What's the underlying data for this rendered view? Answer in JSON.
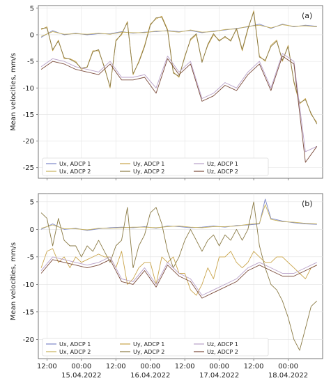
{
  "figure": {
    "ylabel": "Mean velocities, mm/s",
    "xticks": {
      "times": [
        "12:00",
        "00:00",
        "12:00",
        "00:00",
        "12:00",
        "00:00",
        "12:00",
        "00:00"
      ],
      "dates": [
        "15.04.2022",
        "16.04.2022",
        "17.04.2022",
        "18.04.2022"
      ]
    }
  },
  "chart_data": [
    {
      "type": "line",
      "panel_label": "(a)",
      "ylabel": "Mean velocities, mm/s",
      "xlabel": "",
      "x_unit": "hours from 14.04.2022 00:00",
      "xlim": [
        9,
        108
      ],
      "ylim": [
        -27,
        5.5
      ],
      "yticks": [
        5,
        0,
        -5,
        -10,
        -15,
        -20,
        -25
      ],
      "xticks": [
        12,
        24,
        36,
        48,
        60,
        72,
        84,
        96
      ],
      "grid": true,
      "legend": {
        "placement": "lower-left",
        "columns": 3
      },
      "series": [
        {
          "name": "Ux, ADCP 1",
          "color": "#7b86c7",
          "x": [
            10,
            14,
            18,
            22,
            26,
            30,
            34,
            38,
            42,
            46,
            50,
            54,
            58,
            62,
            66,
            70,
            74,
            78,
            82,
            86,
            90,
            94,
            98,
            102,
            106
          ],
          "y": [
            -0.5,
            0.8,
            0,
            0.3,
            0,
            0.2,
            0.2,
            0.6,
            0.3,
            0.5,
            0.6,
            0.8,
            0.6,
            0.8,
            0.4,
            0.7,
            0.9,
            1.2,
            1.5,
            2,
            1.2,
            2,
            1.5,
            1.8,
            1.6
          ]
        },
        {
          "name": "Ux, ADCP 2",
          "color": "#c9b25a",
          "x": [
            10,
            14,
            18,
            22,
            26,
            30,
            34,
            38,
            42,
            46,
            50,
            54,
            58,
            62,
            66,
            70,
            74,
            78,
            82,
            86,
            90,
            94,
            98,
            102,
            106
          ],
          "y": [
            -0.3,
            0.6,
            0.1,
            0.2,
            0.1,
            0.3,
            0.1,
            0.5,
            0.4,
            0.4,
            0.7,
            0.7,
            0.5,
            0.9,
            0.5,
            0.6,
            1,
            1.1,
            1.6,
            1.8,
            1.3,
            1.9,
            1.6,
            1.7,
            1.5
          ]
        },
        {
          "name": "Uy, ADCP 1",
          "color": "#c9a44a",
          "x": [
            10,
            12,
            14,
            16,
            18,
            20,
            22,
            24,
            26,
            28,
            30,
            32,
            34,
            36,
            38,
            40,
            42,
            44,
            46,
            48,
            50,
            52,
            54,
            56,
            58,
            60,
            62,
            64,
            66,
            68,
            70,
            72,
            74,
            76,
            78,
            80,
            82,
            84,
            86,
            88,
            90,
            92,
            94,
            96,
            98,
            100,
            102,
            104,
            106
          ],
          "y": [
            1,
            1.5,
            -3,
            -1,
            -4.5,
            -4.5,
            -5,
            -6.5,
            -6,
            -3,
            -3,
            -6,
            -10,
            -1,
            0,
            2.5,
            -7.5,
            -5,
            -2,
            2,
            3,
            3.5,
            1,
            -7,
            -8,
            -4,
            -1,
            0,
            -5,
            -2,
            0,
            -1,
            -0.5,
            -1,
            1,
            -3,
            1,
            4.5,
            -4,
            -5,
            -2,
            -1,
            -5,
            -2,
            -9,
            -13,
            -12,
            -15,
            -16.5
          ]
        },
        {
          "name": "Uy, ADCP 2",
          "color": "#8a7a44",
          "x": [
            10,
            12,
            14,
            16,
            18,
            20,
            22,
            24,
            26,
            28,
            30,
            32,
            34,
            36,
            38,
            40,
            42,
            44,
            46,
            48,
            50,
            52,
            54,
            56,
            58,
            60,
            62,
            64,
            66,
            68,
            70,
            72,
            74,
            76,
            78,
            80,
            82,
            84,
            86,
            88,
            90,
            92,
            94,
            96,
            98,
            100,
            102,
            104,
            106
          ],
          "y": [
            1.2,
            1.3,
            -2.8,
            -1.2,
            -4.3,
            -4.6,
            -5.2,
            -6.3,
            -6.1,
            -3.2,
            -2.8,
            -6.2,
            -9.8,
            -1.2,
            0.2,
            2.3,
            -7.3,
            -5.2,
            -2.2,
            1.8,
            3.2,
            3.3,
            0.8,
            -7.2,
            -7.8,
            -4.2,
            -0.8,
            0.2,
            -5.2,
            -1.8,
            0.2,
            -1.2,
            -0.3,
            -1.2,
            1.2,
            -2.8,
            1.2,
            4.3,
            -4.2,
            -4.8,
            -2.2,
            -1.2,
            -4.8,
            -2.2,
            -8.8,
            -12.8,
            -12.2,
            -14.8,
            -16.8
          ]
        },
        {
          "name": "Uz, ADCP 1",
          "color": "#b8a0c8",
          "x": [
            10,
            14,
            18,
            22,
            26,
            30,
            34,
            38,
            42,
            46,
            50,
            54,
            58,
            62,
            66,
            70,
            74,
            78,
            82,
            86,
            90,
            94,
            98,
            102,
            106
          ],
          "y": [
            -6,
            -4.5,
            -5,
            -6,
            -6.5,
            -7,
            -5,
            -8,
            -8,
            -7.5,
            -10,
            -4,
            -7,
            -5,
            -12,
            -11,
            -9,
            -10,
            -7,
            -5,
            -10,
            -3.5,
            -5,
            -22,
            -21
          ]
        },
        {
          "name": "Uz, ADCP 2",
          "color": "#7a4a3a",
          "x": [
            10,
            14,
            18,
            22,
            26,
            30,
            34,
            38,
            42,
            46,
            50,
            54,
            58,
            62,
            66,
            70,
            74,
            78,
            82,
            86,
            90,
            94,
            98,
            102,
            106
          ],
          "y": [
            -6.5,
            -5,
            -5.5,
            -6.5,
            -7,
            -7.5,
            -5.5,
            -8.5,
            -8.5,
            -8,
            -11,
            -4.5,
            -7.5,
            -5.5,
            -12.5,
            -11.5,
            -9.5,
            -10.5,
            -7.5,
            -5.5,
            -10.5,
            -4,
            -5.5,
            -24,
            -21
          ]
        }
      ]
    },
    {
      "type": "line",
      "panel_label": "(b)",
      "ylabel": "Mean velocities, mm/s",
      "xlabel": "",
      "x_unit": "hours from 14.04.2022 00:00",
      "xlim": [
        9,
        108
      ],
      "ylim": [
        -23.5,
        6.5
      ],
      "yticks": [
        5,
        0,
        -5,
        -10,
        -15,
        -20
      ],
      "xticks": [
        12,
        24,
        36,
        48,
        60,
        72,
        84,
        96
      ],
      "grid": true,
      "legend": {
        "placement": "lower-left",
        "columns": 3
      },
      "series": [
        {
          "name": "Ux, ADCP 1",
          "color": "#7b86c7",
          "x": [
            10,
            14,
            18,
            22,
            26,
            30,
            34,
            38,
            42,
            46,
            50,
            54,
            58,
            62,
            66,
            70,
            74,
            78,
            82,
            86,
            88,
            90,
            94,
            98,
            102,
            106
          ],
          "y": [
            0,
            1,
            0,
            0.2,
            -0.2,
            0.1,
            0.3,
            0.4,
            0.3,
            0.5,
            0.2,
            0.6,
            0.5,
            0.3,
            0.4,
            0.6,
            0.4,
            0.7,
            0.8,
            1,
            5.5,
            2,
            1.5,
            1.2,
            1,
            0.9
          ]
        },
        {
          "name": "Ux, ADCP 2",
          "color": "#c9b25a",
          "x": [
            10,
            14,
            18,
            22,
            26,
            30,
            34,
            38,
            42,
            46,
            50,
            54,
            58,
            62,
            66,
            70,
            74,
            78,
            82,
            86,
            88,
            90,
            94,
            98,
            102,
            106
          ],
          "y": [
            0.2,
            0.8,
            0.1,
            0.1,
            -0.1,
            0.2,
            0.2,
            0.3,
            0.4,
            0.4,
            0.3,
            0.5,
            0.6,
            0.4,
            0.3,
            0.5,
            0.5,
            0.6,
            0.9,
            1.1,
            4.5,
            1.8,
            1.4,
            1.3,
            1.1,
            1
          ]
        },
        {
          "name": "Uy, ADCP 1",
          "color": "#c9a44a",
          "x": [
            10,
            12,
            14,
            16,
            18,
            20,
            22,
            24,
            26,
            28,
            30,
            32,
            34,
            36,
            38,
            40,
            42,
            44,
            46,
            48,
            50,
            52,
            54,
            56,
            58,
            60,
            62,
            64,
            66,
            68,
            70,
            72,
            74,
            76,
            78,
            80,
            82,
            84,
            86,
            88,
            90,
            92,
            94,
            96,
            98,
            100,
            102,
            104,
            106
          ],
          "y": [
            -7,
            -4,
            -3.5,
            -6,
            -5,
            -7,
            -5,
            -6,
            -5.5,
            -5,
            -4.5,
            -5,
            -5,
            -7,
            -4,
            -10,
            -9,
            -7,
            -6,
            -6,
            -10,
            -5,
            -6,
            -5,
            -8,
            -8,
            -11,
            -12,
            -10,
            -7,
            -9,
            -5,
            -5,
            -4,
            -6,
            -7,
            -6,
            -4,
            -5,
            -6,
            -6,
            -5,
            -5,
            -6,
            -7,
            -8,
            -9,
            -7,
            -6.5
          ]
        },
        {
          "name": "Uy, ADCP 2",
          "color": "#8a7a44",
          "x": [
            10,
            12,
            14,
            16,
            18,
            20,
            22,
            24,
            26,
            28,
            30,
            32,
            34,
            36,
            38,
            40,
            42,
            44,
            46,
            48,
            50,
            52,
            54,
            56,
            58,
            60,
            62,
            64,
            66,
            68,
            70,
            72,
            74,
            76,
            78,
            80,
            82,
            84,
            86,
            88,
            90,
            92,
            94,
            96,
            98,
            100,
            102,
            104,
            106
          ],
          "y": [
            3,
            2,
            -3,
            2,
            -2,
            -3,
            -3,
            -5,
            -3,
            -4,
            -2,
            -4,
            -6,
            -3,
            -2,
            4,
            -7,
            -3,
            -1,
            3,
            4,
            1,
            -4,
            -7,
            -5,
            -2,
            0,
            -2,
            -4,
            -2,
            -1,
            -3,
            -1,
            -2,
            0,
            -2,
            0,
            5,
            -3,
            -7,
            -10,
            -11,
            -13,
            -16,
            -20,
            -22,
            -18,
            -14,
            -13
          ]
        },
        {
          "name": "Uz, ADCP 1",
          "color": "#b8a0c8",
          "x": [
            10,
            14,
            18,
            22,
            26,
            30,
            34,
            38,
            42,
            46,
            50,
            54,
            58,
            62,
            66,
            70,
            74,
            78,
            82,
            86,
            90,
            94,
            98,
            102,
            106
          ],
          "y": [
            -7.5,
            -5,
            -5.5,
            -6,
            -6.5,
            -6,
            -5,
            -9,
            -9.5,
            -7,
            -10,
            -6,
            -8,
            -9,
            -12,
            -11,
            -10,
            -9,
            -7,
            -6,
            -7,
            -8,
            -8,
            -7,
            -6
          ]
        },
        {
          "name": "Uz, ADCP 2",
          "color": "#7a4a3a",
          "x": [
            10,
            14,
            18,
            22,
            26,
            30,
            34,
            38,
            42,
            46,
            50,
            54,
            58,
            62,
            66,
            70,
            74,
            78,
            82,
            86,
            90,
            94,
            98,
            102,
            106
          ],
          "y": [
            -8,
            -5.5,
            -6,
            -6.5,
            -7,
            -6.5,
            -5.5,
            -9.5,
            -10,
            -7.5,
            -10.5,
            -6.5,
            -8.5,
            -9.5,
            -12.5,
            -11.5,
            -10.5,
            -9.5,
            -7.5,
            -6.5,
            -7.5,
            -8.5,
            -8.5,
            -7.5,
            -6.5
          ]
        }
      ]
    }
  ]
}
